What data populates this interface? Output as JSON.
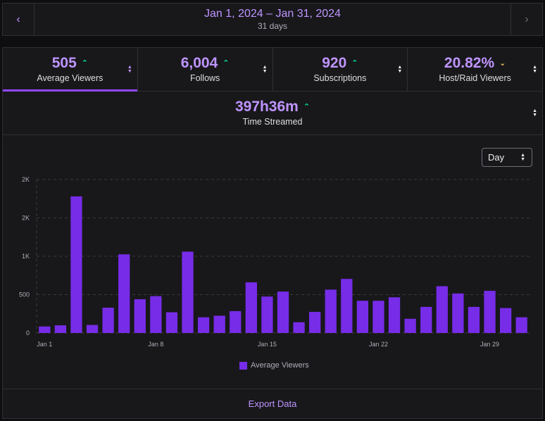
{
  "date_header": {
    "range": "Jan 1, 2024 – Jan 31, 2024",
    "days": "31 days",
    "prev_icon": "chevron-left-icon",
    "next_icon": "chevron-right-icon"
  },
  "stats": [
    {
      "value": "505",
      "label": "Average Viewers",
      "trend": "up",
      "trend_glyph": "⌃",
      "active": true
    },
    {
      "value": "6,004",
      "label": "Follows",
      "trend": "up",
      "trend_glyph": "⌃",
      "active": false
    },
    {
      "value": "920",
      "label": "Subscriptions",
      "trend": "up",
      "trend_glyph": "⌃",
      "active": false
    },
    {
      "value": "20.82%",
      "label": "Host/Raid Viewers",
      "trend": "down",
      "trend_glyph": "⌄",
      "active": false
    }
  ],
  "time_streamed": {
    "value": "397h36m",
    "label": "Time Streamed",
    "trend": "up",
    "trend_glyph": "⌃"
  },
  "granularity": {
    "selected": "Day"
  },
  "colors": {
    "bar": "#772ce8",
    "accent": "#bf94ff",
    "trend_up": "#00f593",
    "trend_down": "#ffca5f"
  },
  "chart_data": {
    "type": "bar",
    "y_tick_labels": [
      "0",
      "500",
      "1K",
      "2K",
      "2K"
    ],
    "y_tick_values": [
      0,
      500,
      1000,
      1500,
      2000
    ],
    "ylim": [
      0,
      2000
    ],
    "x_tick_labels": [
      {
        "index": 0,
        "label": "Jan 1"
      },
      {
        "index": 7,
        "label": "Jan 8"
      },
      {
        "index": 14,
        "label": "Jan 15"
      },
      {
        "index": 21,
        "label": "Jan 22"
      },
      {
        "index": 28,
        "label": "Jan 29"
      }
    ],
    "categories": [
      "Jan 1",
      "Jan 2",
      "Jan 3",
      "Jan 4",
      "Jan 5",
      "Jan 6",
      "Jan 7",
      "Jan 8",
      "Jan 9",
      "Jan 10",
      "Jan 11",
      "Jan 12",
      "Jan 13",
      "Jan 14",
      "Jan 15",
      "Jan 16",
      "Jan 17",
      "Jan 18",
      "Jan 19",
      "Jan 20",
      "Jan 21",
      "Jan 22",
      "Jan 23",
      "Jan 24",
      "Jan 25",
      "Jan 26",
      "Jan 27",
      "Jan 28",
      "Jan 29",
      "Jan 30",
      "Jan 31"
    ],
    "series": [
      {
        "name": "Average Viewers",
        "values": [
          85,
          100,
          1780,
          105,
          330,
          1025,
          440,
          480,
          270,
          1060,
          205,
          225,
          285,
          660,
          475,
          540,
          140,
          275,
          565,
          705,
          420,
          420,
          465,
          185,
          340,
          610,
          515,
          340,
          550,
          325,
          205
        ]
      }
    ],
    "legend": "bottom-center",
    "grid": true
  },
  "export": {
    "label": "Export Data"
  }
}
